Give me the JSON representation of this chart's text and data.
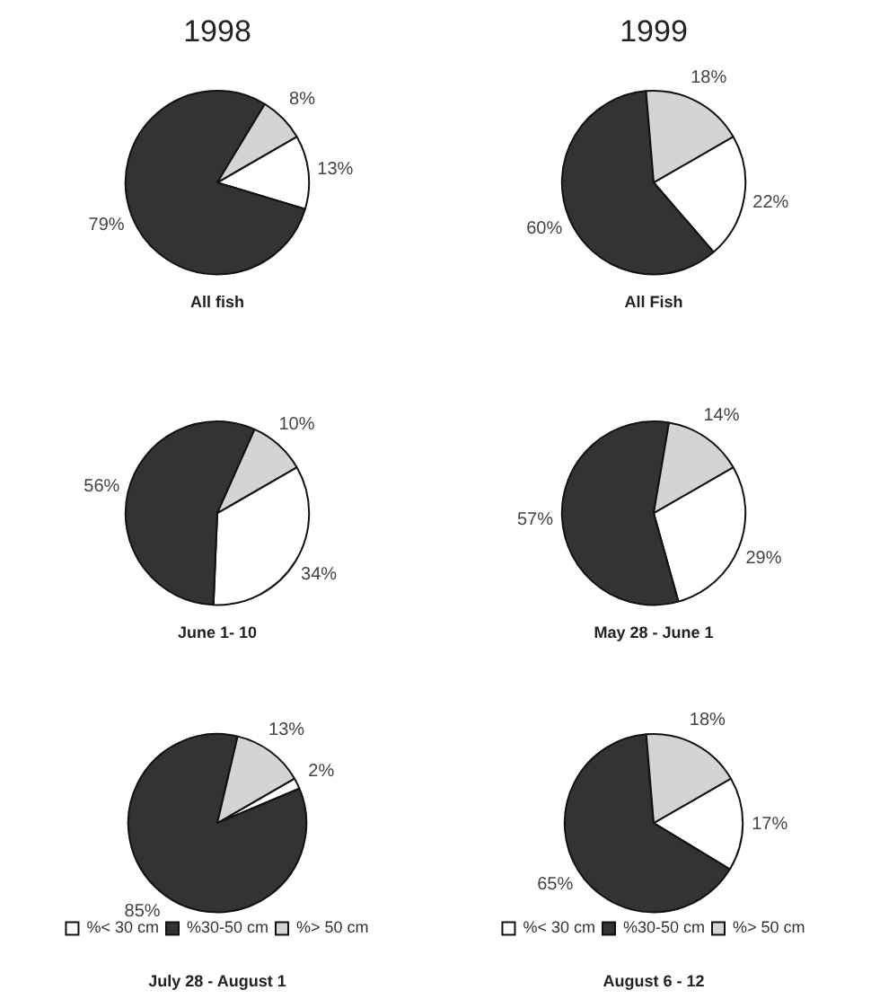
{
  "chart_data": [
    {
      "type": "pie",
      "title": "1998",
      "subtitle": "All fish",
      "categories": [
        null,
        null,
        null
      ],
      "values": [
        13,
        79,
        8
      ],
      "value_labels": [
        "13%",
        "79%",
        "8%"
      ],
      "colors": [
        "#ffffff",
        "#333333",
        "#d4d4d4"
      ],
      "legend": false
    },
    {
      "type": "pie",
      "title": "1999",
      "subtitle": "All Fish",
      "categories": [
        null,
        null,
        null
      ],
      "values": [
        22,
        60,
        18
      ],
      "value_labels": [
        "22%",
        "60%",
        "18%"
      ],
      "colors": [
        "#ffffff",
        "#333333",
        "#d4d4d4"
      ],
      "legend": false
    },
    {
      "type": "pie",
      "subtitle": "June 1- 10",
      "categories": [
        null,
        null,
        null
      ],
      "values": [
        34,
        56,
        10
      ],
      "value_labels": [
        "34%",
        "56%",
        "10%"
      ],
      "colors": [
        "#ffffff",
        "#333333",
        "#d4d4d4"
      ],
      "legend": false
    },
    {
      "type": "pie",
      "subtitle": "May 28 - June 1",
      "categories": [
        null,
        null,
        null
      ],
      "values": [
        29,
        57,
        14
      ],
      "value_labels": [
        "29%",
        "57%",
        "14%"
      ],
      "colors": [
        "#ffffff",
        "#333333",
        "#d4d4d4"
      ],
      "legend": false
    },
    {
      "type": "pie",
      "subtitle": "July 28 - August 1",
      "categories": [
        "%< 30 cm",
        "%30-50 cm",
        "%> 50 cm"
      ],
      "values": [
        2,
        85,
        13
      ],
      "value_labels": [
        "2%",
        "85%",
        "13%"
      ],
      "colors": [
        "#ffffff",
        "#333333",
        "#d4d4d4"
      ],
      "legend": "bottom"
    },
    {
      "type": "pie",
      "subtitle": "August 6 - 12",
      "categories": [
        "%< 30 cm",
        "%30-50 cm",
        "%> 50 cm"
      ],
      "values": [
        17,
        65,
        18
      ],
      "value_labels": [
        "17%",
        "65%",
        "18%"
      ],
      "colors": [
        "#ffffff",
        "#333333",
        "#d4d4d4"
      ],
      "legend": "bottom"
    }
  ]
}
